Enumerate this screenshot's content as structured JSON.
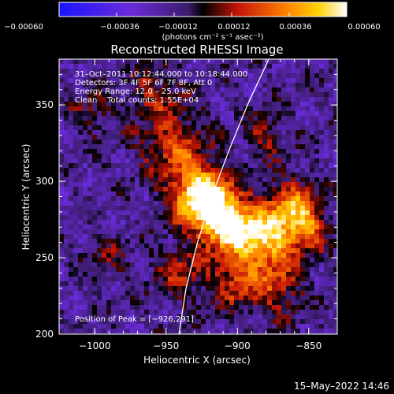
{
  "chart_data": {
    "type": "heatmap",
    "title": "Reconstructed RHESSI Image",
    "xlabel": "Heliocentric X (arcsec)",
    "ylabel": "Heliocentric Y (arcsec)",
    "xlim": [
      -1025,
      -830
    ],
    "ylim": [
      200,
      380
    ],
    "xticks": [
      -1000,
      -950,
      -900,
      -850
    ],
    "yticks": [
      200,
      250,
      300,
      350
    ],
    "xtick_labels": [
      "−1000",
      "−950",
      "−900",
      "−850"
    ],
    "ytick_labels": [
      "200",
      "250",
      "300",
      "350"
    ],
    "colorbar": {
      "range": [
        -0.0006,
        0.0006
      ],
      "ticks": [
        -0.0006,
        -0.00036,
        -0.00012,
        0.00012,
        0.00036,
        0.0006
      ],
      "tick_labels": [
        "−0.00060",
        "−0.00036",
        "−0.00012",
        "0.00012",
        "0.00036",
        "0.00060"
      ],
      "units": "(photons cm⁻² s⁻¹ asec⁻²)"
    },
    "annotations": [
      "31–Oct–2011 10:12:44.000 to 10:18:44.000",
      "Detectors: 3F 4F 5F 6F 7F 8F, Att 0",
      "Energy Range: 12.0 – 25.0 keV",
      "Clean    Total counts: 1.55E+04"
    ],
    "peak_label": "Position of Peak = [−926,291]",
    "peak": [
      -926,
      291
    ],
    "limb_curve": [
      [
        -941,
        200
      ],
      [
        -936,
        230
      ],
      [
        -928,
        260
      ],
      [
        -918,
        290
      ],
      [
        -906,
        320
      ],
      [
        -893,
        350
      ],
      [
        -878,
        380
      ]
    ],
    "colors": {
      "background": "#000000",
      "limb": "#ffffff"
    }
  },
  "footer": {
    "timestamp": "15–May–2022 14:46"
  }
}
